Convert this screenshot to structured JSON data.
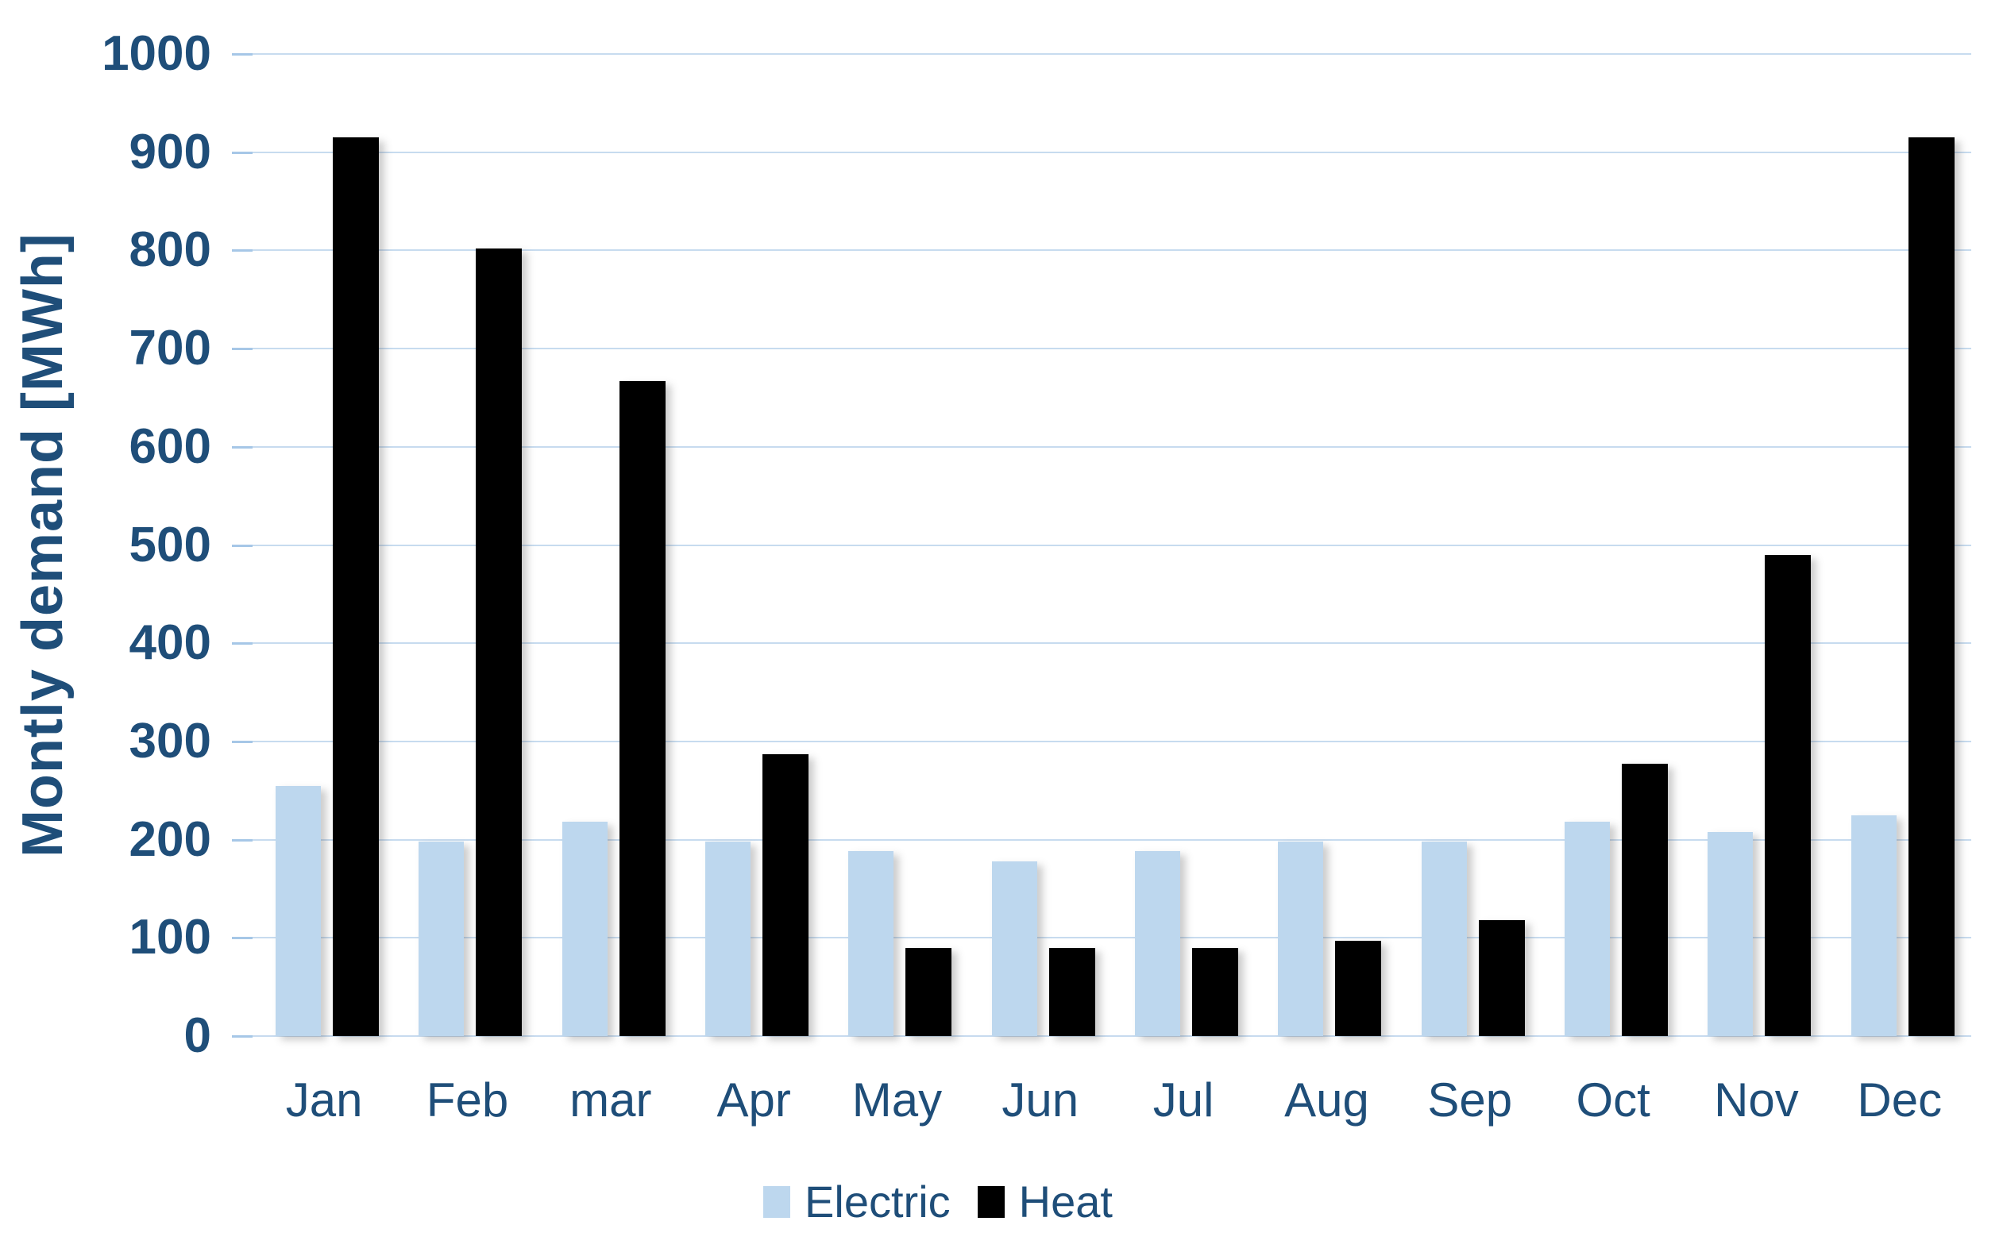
{
  "chart_data": {
    "type": "bar",
    "title": "",
    "xlabel": "",
    "ylabel": "Montly demand [MWh]",
    "categories": [
      "Jan",
      "Feb",
      "mar",
      "Apr",
      "May",
      "Jun",
      "Jul",
      "Aug",
      "Sep",
      "Oct",
      "Nov",
      "Dec"
    ],
    "series": [
      {
        "name": "Electric",
        "color": "#BDD7EE",
        "values": [
          255,
          198,
          218,
          198,
          188,
          178,
          188,
          198,
          198,
          218,
          208,
          225
        ]
      },
      {
        "name": "Heat",
        "color": "#000000",
        "values": [
          915,
          802,
          667,
          287,
          90,
          90,
          90,
          97,
          118,
          277,
          490,
          915
        ]
      }
    ],
    "ylim": [
      0,
      1000
    ],
    "yticks": [
      0,
      100,
      200,
      300,
      400,
      500,
      600,
      700,
      800,
      900,
      1000
    ],
    "grid": true,
    "legend_position": "bottom",
    "colors": {
      "axis_text": "#1F4E79",
      "gridline": "#C7DBEF",
      "tick_mark": "#A6C7E7",
      "background": "#FFFFFF"
    }
  }
}
